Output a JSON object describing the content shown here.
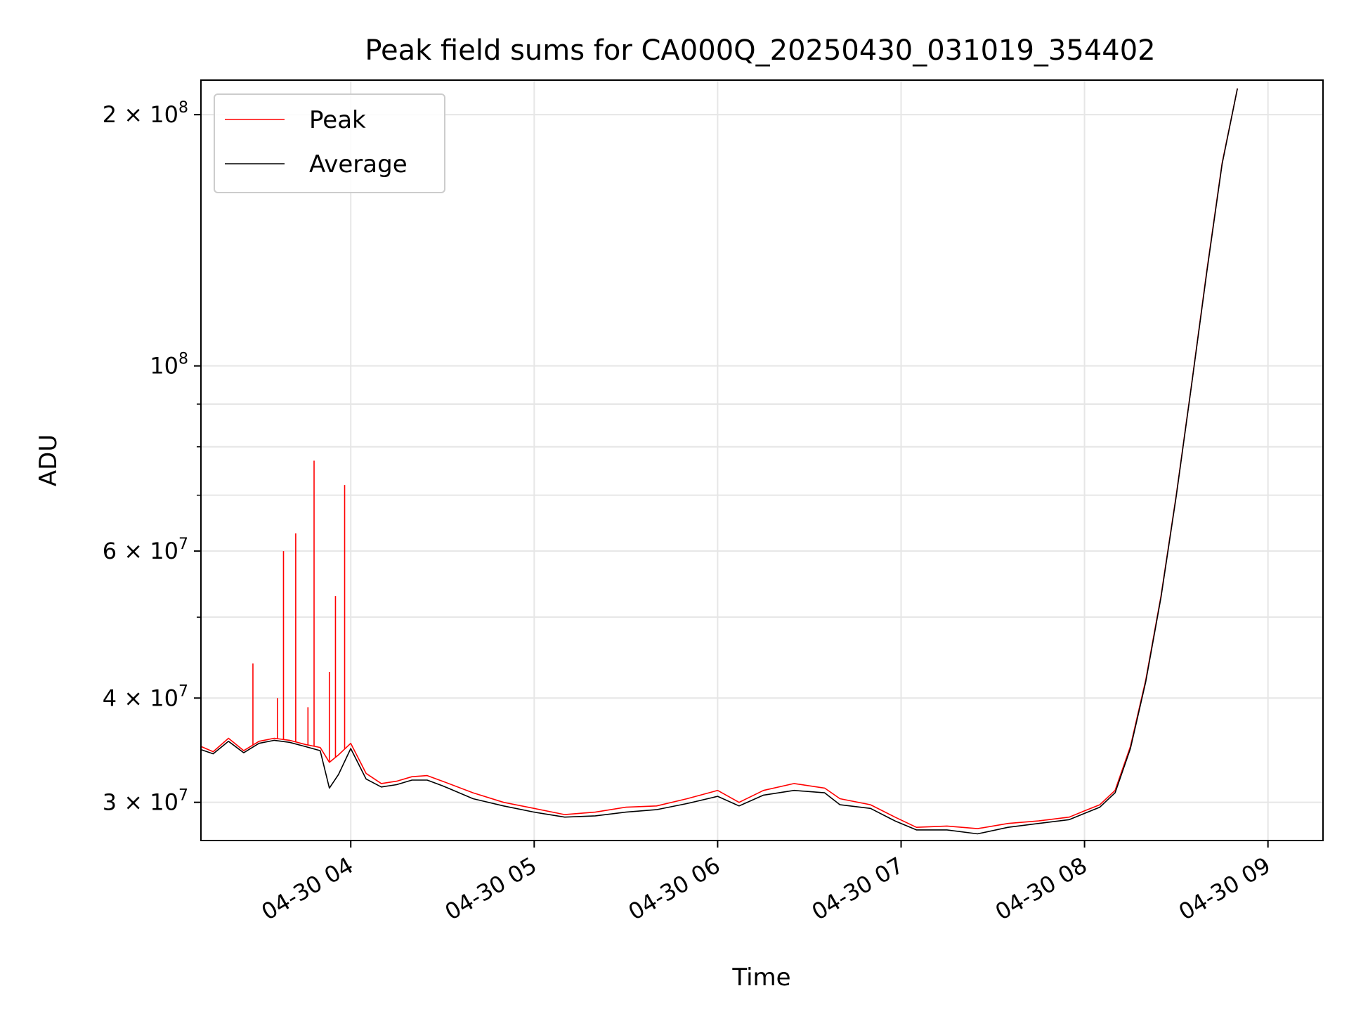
{
  "chart_data": {
    "type": "line",
    "title": "Peak field sums for CA000Q_20250430_031019_354402",
    "xlabel": "Time",
    "ylabel": "ADU",
    "yscale": "log",
    "grid": true,
    "legend_position": "top-left",
    "xlim": [
      "2025-04-30 03:11",
      "2025-04-30 09:18"
    ],
    "ylim": [
      27000000,
      220000000
    ],
    "x_ticks": [
      "04-30 04",
      "04-30 05",
      "04-30 06",
      "04-30 07",
      "04-30 08",
      "04-30 09"
    ],
    "x_tick_times": [
      "2025-04-30 04:00",
      "2025-04-30 05:00",
      "2025-04-30 06:00",
      "2025-04-30 07:00",
      "2025-04-30 08:00",
      "2025-04-30 09:00"
    ],
    "y_major_ticks": [
      {
        "value": 30000000,
        "mantissa": "3",
        "exponent": "7"
      },
      {
        "value": 40000000,
        "mantissa": "4",
        "exponent": "7"
      },
      {
        "value": 60000000,
        "mantissa": "6",
        "exponent": "7"
      },
      {
        "value": 100000000,
        "mantissa": "",
        "exponent": "8"
      },
      {
        "value": 200000000,
        "mantissa": "2",
        "exponent": "8"
      }
    ],
    "y_minor_gridlines": [
      50000000,
      70000000,
      80000000,
      90000000
    ],
    "series": [
      {
        "name": "Peak",
        "color": "#ff0000",
        "points": [
          [
            "2025-04-30 03:11",
            35000000
          ],
          [
            "2025-04-30 03:15",
            34500000
          ],
          [
            "2025-04-30 03:20",
            35800000
          ],
          [
            "2025-04-30 03:25",
            34600000
          ],
          [
            "2025-04-30 03:30",
            35500000
          ],
          [
            "2025-04-30 03:35",
            35800000
          ],
          [
            "2025-04-30 03:40",
            35600000
          ],
          [
            "2025-04-30 03:45",
            35200000
          ],
          [
            "2025-04-30 03:50",
            34900000
          ],
          [
            "2025-04-30 03:53",
            33500000
          ],
          [
            "2025-04-30 03:56",
            34200000
          ],
          [
            "2025-04-30 04:00",
            35300000
          ],
          [
            "2025-04-30 04:05",
            32500000
          ],
          [
            "2025-04-30 04:10",
            31600000
          ],
          [
            "2025-04-30 04:15",
            31800000
          ],
          [
            "2025-04-30 04:20",
            32200000
          ],
          [
            "2025-04-30 04:25",
            32300000
          ],
          [
            "2025-04-30 04:30",
            31800000
          ],
          [
            "2025-04-30 04:40",
            30800000
          ],
          [
            "2025-04-30 04:50",
            30000000
          ],
          [
            "2025-04-30 05:00",
            29500000
          ],
          [
            "2025-04-30 05:10",
            29000000
          ],
          [
            "2025-04-30 05:20",
            29200000
          ],
          [
            "2025-04-30 05:30",
            29600000
          ],
          [
            "2025-04-30 05:40",
            29700000
          ],
          [
            "2025-04-30 05:50",
            30300000
          ],
          [
            "2025-04-30 06:00",
            31000000
          ],
          [
            "2025-04-30 06:07",
            30000000
          ],
          [
            "2025-04-30 06:15",
            31000000
          ],
          [
            "2025-04-30 06:25",
            31600000
          ],
          [
            "2025-04-30 06:35",
            31200000
          ],
          [
            "2025-04-30 06:40",
            30300000
          ],
          [
            "2025-04-30 06:50",
            29800000
          ],
          [
            "2025-04-30 06:58",
            28800000
          ],
          [
            "2025-04-30 07:05",
            28000000
          ],
          [
            "2025-04-30 07:15",
            28100000
          ],
          [
            "2025-04-30 07:25",
            27900000
          ],
          [
            "2025-04-30 07:35",
            28300000
          ],
          [
            "2025-04-30 07:45",
            28500000
          ],
          [
            "2025-04-30 07:55",
            28800000
          ],
          [
            "2025-04-30 08:00",
            29300000
          ],
          [
            "2025-04-30 08:05",
            29800000
          ],
          [
            "2025-04-30 08:10",
            31000000
          ],
          [
            "2025-04-30 08:15",
            35000000
          ],
          [
            "2025-04-30 08:20",
            42000000
          ],
          [
            "2025-04-30 08:25",
            53000000
          ],
          [
            "2025-04-30 08:30",
            70000000
          ],
          [
            "2025-04-30 08:35",
            95000000
          ],
          [
            "2025-04-30 08:40",
            130000000
          ],
          [
            "2025-04-30 08:45",
            175000000
          ],
          [
            "2025-04-30 08:50",
            215000000
          ]
        ],
        "spikes": [
          [
            "2025-04-30 03:28",
            44000000
          ],
          [
            "2025-04-30 03:36",
            40000000
          ],
          [
            "2025-04-30 03:38",
            60000000
          ],
          [
            "2025-04-30 03:42",
            63000000
          ],
          [
            "2025-04-30 03:46",
            39000000
          ],
          [
            "2025-04-30 03:48",
            77000000
          ],
          [
            "2025-04-30 03:53",
            43000000
          ],
          [
            "2025-04-30 03:55",
            53000000
          ],
          [
            "2025-04-30 03:58",
            72000000
          ]
        ]
      },
      {
        "name": "Average",
        "color": "#000000",
        "points": [
          [
            "2025-04-30 03:11",
            34700000
          ],
          [
            "2025-04-30 03:15",
            34300000
          ],
          [
            "2025-04-30 03:20",
            35500000
          ],
          [
            "2025-04-30 03:25",
            34400000
          ],
          [
            "2025-04-30 03:30",
            35300000
          ],
          [
            "2025-04-30 03:35",
            35600000
          ],
          [
            "2025-04-30 03:40",
            35400000
          ],
          [
            "2025-04-30 03:45",
            35000000
          ],
          [
            "2025-04-30 03:50",
            34600000
          ],
          [
            "2025-04-30 03:53",
            31200000
          ],
          [
            "2025-04-30 03:56",
            32400000
          ],
          [
            "2025-04-30 04:00",
            34800000
          ],
          [
            "2025-04-30 04:05",
            32000000
          ],
          [
            "2025-04-30 04:10",
            31300000
          ],
          [
            "2025-04-30 04:15",
            31500000
          ],
          [
            "2025-04-30 04:20",
            31900000
          ],
          [
            "2025-04-30 04:25",
            31900000
          ],
          [
            "2025-04-30 04:30",
            31400000
          ],
          [
            "2025-04-30 04:40",
            30300000
          ],
          [
            "2025-04-30 04:50",
            29700000
          ],
          [
            "2025-04-30 05:00",
            29200000
          ],
          [
            "2025-04-30 05:10",
            28800000
          ],
          [
            "2025-04-30 05:20",
            28900000
          ],
          [
            "2025-04-30 05:30",
            29200000
          ],
          [
            "2025-04-30 05:40",
            29400000
          ],
          [
            "2025-04-30 05:50",
            29900000
          ],
          [
            "2025-04-30 06:00",
            30500000
          ],
          [
            "2025-04-30 06:07",
            29700000
          ],
          [
            "2025-04-30 06:15",
            30600000
          ],
          [
            "2025-04-30 06:25",
            31000000
          ],
          [
            "2025-04-30 06:35",
            30800000
          ],
          [
            "2025-04-30 06:40",
            29800000
          ],
          [
            "2025-04-30 06:50",
            29500000
          ],
          [
            "2025-04-30 06:58",
            28500000
          ],
          [
            "2025-04-30 07:05",
            27800000
          ],
          [
            "2025-04-30 07:15",
            27800000
          ],
          [
            "2025-04-30 07:25",
            27500000
          ],
          [
            "2025-04-30 07:35",
            28000000
          ],
          [
            "2025-04-30 07:45",
            28300000
          ],
          [
            "2025-04-30 07:55",
            28600000
          ],
          [
            "2025-04-30 08:00",
            29100000
          ],
          [
            "2025-04-30 08:05",
            29600000
          ],
          [
            "2025-04-30 08:10",
            30800000
          ],
          [
            "2025-04-30 08:15",
            34800000
          ],
          [
            "2025-04-30 08:20",
            41800000
          ],
          [
            "2025-04-30 08:25",
            52800000
          ],
          [
            "2025-04-30 08:30",
            69800000
          ],
          [
            "2025-04-30 08:35",
            94800000
          ],
          [
            "2025-04-30 08:40",
            129500000
          ],
          [
            "2025-04-30 08:45",
            174500000
          ],
          [
            "2025-04-30 08:50",
            215000000
          ]
        ]
      }
    ]
  }
}
